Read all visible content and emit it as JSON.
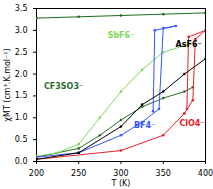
{
  "chart_data": {
    "type": "line",
    "x_label": "T (K)",
    "y_label": "χMT (cm³.K.mol⁻¹)",
    "xlim": [
      200,
      400
    ],
    "xticks": [
      200,
      250,
      300,
      350,
      400
    ],
    "ylim": [
      0,
      3.5
    ],
    "yticks": [
      {
        "value": 0,
        "label": "0.0"
      },
      {
        "value": 0.5,
        "label": "0.5"
      },
      {
        "value": 1,
        "label": "1.0"
      },
      {
        "value": 1.5,
        "label": "1.5"
      },
      {
        "value": 2,
        "label": "2.0"
      },
      {
        "value": 2.5,
        "label": "2.5"
      },
      {
        "value": 3,
        "label": "3.0"
      },
      {
        "value": 3.5,
        "label": "3.5"
      }
    ],
    "marker": "circle",
    "series": [
      {
        "name": null,
        "color": "#1e6b1e",
        "x": [
          200,
          250,
          300,
          350,
          400
        ],
        "values": [
          3.28,
          3.31,
          3.34,
          3.37,
          3.4
        ]
      },
      {
        "name": "CF3SO3⁻",
        "color": "#2a6e2a",
        "x": [
          200,
          250,
          275,
          300,
          325,
          350,
          375,
          385
        ],
        "values": [
          0.1,
          0.3,
          0.6,
          0.95,
          1.25,
          1.45,
          1.6,
          1.7
        ]
      },
      {
        "name": "SbF6⁻",
        "color": "#7ed957",
        "x": [
          200,
          225,
          250,
          275,
          300,
          325,
          350,
          375,
          382
        ],
        "values": [
          0.12,
          0.2,
          0.4,
          1.0,
          1.6,
          2.1,
          2.5,
          2.65,
          2.7
        ]
      },
      {
        "name": "BF4⁻",
        "color": "#3355ff",
        "x": [
          200,
          250,
          300,
          325,
          345,
          350,
          365,
          340,
          338
        ],
        "values": [
          0.1,
          0.2,
          0.6,
          0.9,
          1.2,
          3.05,
          3.1,
          3.0,
          1.15
        ]
      },
      {
        "name": "ClO4⁻",
        "color": "#e8202a",
        "x": [
          200,
          300,
          350,
          375,
          385,
          388,
          400,
          380,
          378
        ],
        "values": [
          0.05,
          0.25,
          0.6,
          1.1,
          1.4,
          2.8,
          3.0,
          2.85,
          1.2
        ]
      },
      {
        "name": "AsF6⁻",
        "color": "#000000",
        "x": [
          200,
          250,
          300,
          325,
          350,
          375,
          400
        ],
        "values": [
          0.05,
          0.2,
          0.8,
          1.3,
          1.6,
          2.0,
          2.35
        ]
      }
    ]
  }
}
